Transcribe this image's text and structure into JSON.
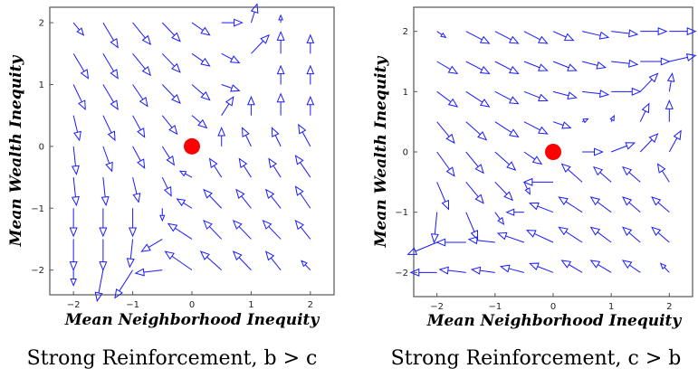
{
  "chart_data": [
    {
      "type": "vector-field",
      "title": "Strong Reinforcement, b > c",
      "xlabel": "Mean Neighborhood Inequity",
      "ylabel": "Mean Wealth Inequity",
      "xlim": [
        -2.4,
        2.4
      ],
      "ylim": [
        -2.4,
        2.25
      ],
      "xticks": [
        -2,
        -1,
        0,
        1,
        2
      ],
      "yticks": [
        -2,
        -1,
        0,
        1,
        2
      ],
      "grid": false,
      "marker": {
        "x": 0,
        "y": 0,
        "color": "#ff0000"
      },
      "arrow_color": "#1a1aff",
      "grid_x": [
        -2,
        -1.5,
        -1,
        -0.5,
        0,
        0.5,
        1,
        1.5,
        2
      ],
      "grid_y": [
        2,
        1.5,
        1,
        0.5,
        0,
        -0.5,
        -1,
        -1.5,
        -2
      ],
      "arrows": [
        [
          [
            0.17,
            -0.2
          ],
          [
            0.25,
            -0.4
          ],
          [
            0.3,
            -0.35
          ],
          [
            0.3,
            -0.3
          ],
          [
            0.3,
            -0.2
          ],
          [
            0.35,
            0.0
          ],
          [
            0.1,
            0.3
          ],
          [
            0.0,
            0.12
          ],
          [
            0.0,
            0.0
          ]
        ],
        [
          [
            0.25,
            -0.4
          ],
          [
            0.25,
            -0.4
          ],
          [
            0.3,
            -0.35
          ],
          [
            0.3,
            -0.3
          ],
          [
            0.3,
            -0.2
          ],
          [
            0.3,
            -0.15
          ],
          [
            0.3,
            0.3
          ],
          [
            0.0,
            0.35
          ],
          [
            0.0,
            0.3
          ]
        ],
        [
          [
            0.2,
            -0.4
          ],
          [
            0.25,
            -0.4
          ],
          [
            0.25,
            -0.35
          ],
          [
            0.3,
            -0.3
          ],
          [
            0.3,
            -0.25
          ],
          [
            0.3,
            -0.1
          ],
          [
            0.0,
            0.0
          ],
          [
            0.0,
            0.3
          ],
          [
            0.0,
            0.3
          ]
        ],
        [
          [
            0.1,
            -0.4
          ],
          [
            0.2,
            -0.4
          ],
          [
            0.2,
            -0.35
          ],
          [
            0.25,
            -0.3
          ],
          [
            0.25,
            -0.2
          ],
          [
            0.2,
            0.3
          ],
          [
            0.0,
            0.3
          ],
          [
            0.0,
            0.35
          ],
          [
            0.0,
            0.3
          ]
        ],
        [
          [
            0.05,
            -0.45
          ],
          [
            0.15,
            -0.4
          ],
          [
            0.2,
            -0.35
          ],
          [
            0.2,
            -0.3
          ],
          [
            0.0,
            0.0
          ],
          [
            0.0,
            0.3
          ],
          [
            -0.15,
            0.3
          ],
          [
            -0.15,
            0.3
          ],
          [
            -0.2,
            0.35
          ]
        ],
        [
          [
            0.05,
            -0.45
          ],
          [
            0.05,
            -0.45
          ],
          [
            0.1,
            -0.4
          ],
          [
            0.15,
            -0.3
          ],
          [
            -0.2,
            0.1
          ],
          [
            -0.2,
            0.3
          ],
          [
            -0.2,
            0.3
          ],
          [
            -0.2,
            0.3
          ],
          [
            -0.25,
            0.35
          ]
        ],
        [
          [
            0.0,
            -0.45
          ],
          [
            0.0,
            -0.45
          ],
          [
            0.0,
            -0.45
          ],
          [
            0.0,
            -0.2
          ],
          [
            -0.25,
            0.15
          ],
          [
            -0.3,
            0.3
          ],
          [
            -0.25,
            0.3
          ],
          [
            -0.25,
            0.3
          ],
          [
            -0.25,
            0.35
          ]
        ],
        [
          [
            0.0,
            -0.5
          ],
          [
            0.0,
            -0.5
          ],
          [
            -0.05,
            -0.45
          ],
          [
            -0.35,
            -0.2
          ],
          [
            -0.4,
            0.25
          ],
          [
            -0.3,
            0.3
          ],
          [
            -0.3,
            0.3
          ],
          [
            -0.3,
            0.3
          ],
          [
            -0.25,
            0.3
          ]
        ],
        [
          [
            0.0,
            -0.25
          ],
          [
            -0.1,
            -0.5
          ],
          [
            -0.3,
            -0.45
          ],
          [
            -0.45,
            -0.05
          ],
          [
            -0.45,
            0.3
          ],
          [
            -0.35,
            0.3
          ],
          [
            -0.3,
            0.3
          ],
          [
            -0.25,
            0.3
          ],
          [
            -0.15,
            0.15
          ]
        ]
      ]
    },
    {
      "type": "vector-field",
      "title": "Strong Reinforcement, c > b",
      "xlabel": "Mean Neighborhood Inequity",
      "ylabel": "Mean Wealth Inequity",
      "xlim": [
        -2.4,
        2.4
      ],
      "ylim": [
        -2.4,
        2.4
      ],
      "xticks": [
        -2,
        -1,
        0,
        1,
        2
      ],
      "yticks": [
        -2,
        -1,
        0,
        1,
        2
      ],
      "grid": false,
      "marker": {
        "x": 0,
        "y": 0,
        "color": "#ff0000"
      },
      "arrow_color": "#1a1aff",
      "grid_x": [
        -2,
        -1.5,
        -1,
        -0.5,
        0,
        0.5,
        1,
        1.5,
        2
      ],
      "grid_y": [
        2,
        1.5,
        1,
        0.5,
        0,
        -0.5,
        -1,
        -1.5,
        -2
      ],
      "arrows": [
        [
          [
            0.15,
            -0.1
          ],
          [
            0.4,
            -0.2
          ],
          [
            0.4,
            -0.2
          ],
          [
            0.4,
            -0.2
          ],
          [
            0.35,
            -0.15
          ],
          [
            0.45,
            -0.1
          ],
          [
            0.45,
            -0.05
          ],
          [
            0.45,
            0.0
          ],
          [
            0.45,
            0.0
          ]
        ],
        [
          [
            0.35,
            -0.2
          ],
          [
            0.4,
            -0.2
          ],
          [
            0.4,
            -0.2
          ],
          [
            0.4,
            -0.15
          ],
          [
            0.4,
            -0.15
          ],
          [
            0.4,
            -0.1
          ],
          [
            0.45,
            -0.05
          ],
          [
            0.5,
            0.0
          ],
          [
            0.45,
            0.1
          ]
        ],
        [
          [
            0.35,
            -0.25
          ],
          [
            0.4,
            -0.25
          ],
          [
            0.4,
            -0.2
          ],
          [
            0.4,
            -0.15
          ],
          [
            0.4,
            -0.1
          ],
          [
            0.45,
            -0.05
          ],
          [
            0.5,
            0.0
          ],
          [
            0.3,
            0.3
          ],
          [
            0.05,
            0.3
          ]
        ],
        [
          [
            0.3,
            -0.35
          ],
          [
            0.35,
            -0.3
          ],
          [
            0.4,
            -0.25
          ],
          [
            0.4,
            -0.2
          ],
          [
            0.3,
            -0.1
          ],
          [
            0.1,
            0.05
          ],
          [
            0.05,
            0.1
          ],
          [
            0.15,
            0.3
          ],
          [
            0.0,
            0.35
          ]
        ],
        [
          [
            0.3,
            -0.4
          ],
          [
            0.3,
            -0.35
          ],
          [
            0.35,
            -0.3
          ],
          [
            0.3,
            -0.2
          ],
          [
            0.0,
            0.0
          ],
          [
            0.35,
            0.0
          ],
          [
            0.4,
            0.15
          ],
          [
            0.3,
            0.3
          ],
          [
            0.2,
            0.35
          ]
        ],
        [
          [
            0.2,
            -0.45
          ],
          [
            0.3,
            -0.35
          ],
          [
            0.3,
            -0.3
          ],
          [
            0.1,
            -0.2
          ],
          [
            -0.5,
            0.0
          ],
          [
            -0.35,
            0.3
          ],
          [
            -0.3,
            0.25
          ],
          [
            -0.3,
            0.25
          ],
          [
            -0.2,
            0.3
          ]
        ],
        [
          [
            -0.05,
            -0.5
          ],
          [
            0.2,
            -0.45
          ],
          [
            0.15,
            -0.2
          ],
          [
            -0.3,
            0.0
          ],
          [
            -0.4,
            0.15
          ],
          [
            -0.4,
            0.25
          ],
          [
            -0.35,
            0.25
          ],
          [
            -0.3,
            0.25
          ],
          [
            -0.3,
            0.25
          ]
        ],
        [
          [
            -0.5,
            -0.2
          ],
          [
            -0.5,
            0.0
          ],
          [
            -0.45,
            0.05
          ],
          [
            -0.45,
            0.15
          ],
          [
            -0.45,
            0.2
          ],
          [
            -0.4,
            0.25
          ],
          [
            -0.35,
            0.25
          ],
          [
            -0.3,
            0.25
          ],
          [
            -0.3,
            0.25
          ]
        ],
        [
          [
            -0.45,
            0.0
          ],
          [
            -0.45,
            0.05
          ],
          [
            -0.4,
            0.05
          ],
          [
            -0.4,
            0.1
          ],
          [
            -0.4,
            0.15
          ],
          [
            -0.35,
            0.2
          ],
          [
            -0.35,
            0.2
          ],
          [
            -0.3,
            0.2
          ],
          [
            -0.15,
            0.15
          ]
        ]
      ]
    }
  ]
}
